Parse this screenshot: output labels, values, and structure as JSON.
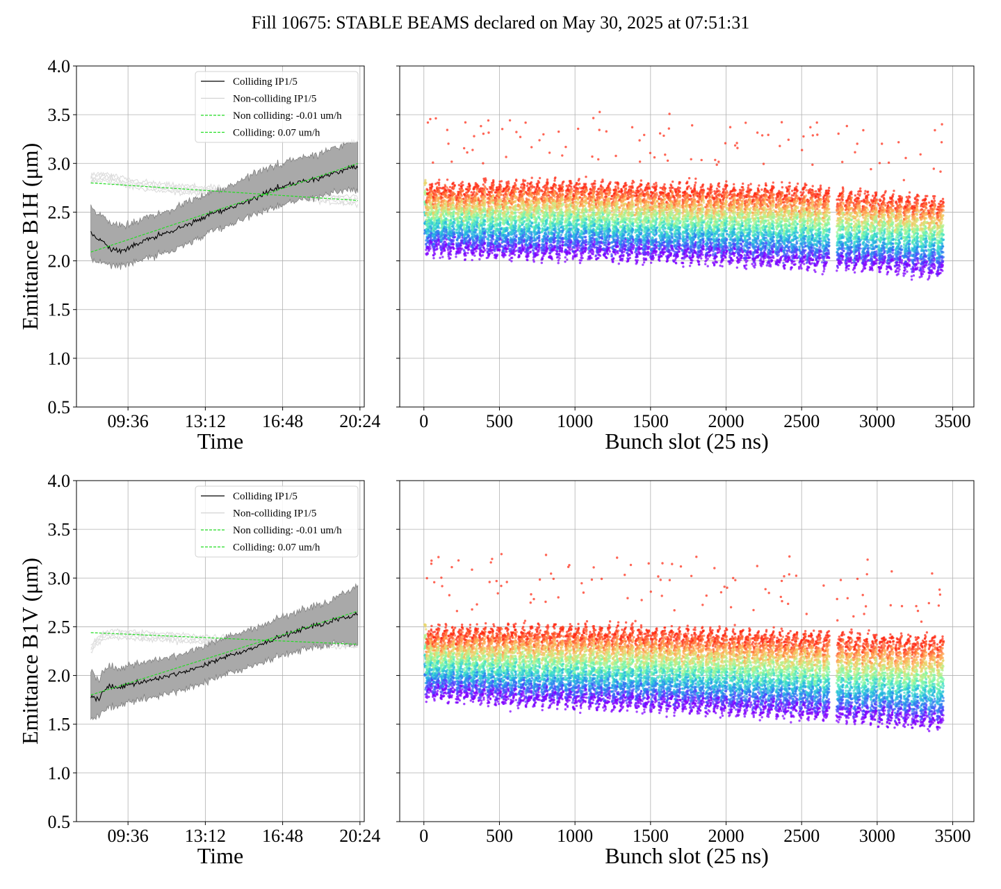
{
  "figure": {
    "title": "Fill 10675: STABLE BEAMS declared on May 30, 2025 at 07:51:31"
  },
  "chart_data": [
    {
      "type": "line",
      "panel": "top-left",
      "ylabel": "Emittance B1H (μm)",
      "xlabel": "Time",
      "ylim": [
        0.5,
        4.0
      ],
      "yticks": [
        "0.5",
        "1.0",
        "1.5",
        "2.0",
        "2.5",
        "3.0",
        "3.5",
        "4.0"
      ],
      "xlim_hours": [
        7.2,
        20.6
      ],
      "xticks": [
        {
          "label": "09:36",
          "hour": 9.6
        },
        {
          "label": "13:12",
          "hour": 13.2
        },
        {
          "label": "16:48",
          "hour": 16.8
        },
        {
          "label": "20:24",
          "hour": 20.4
        }
      ],
      "grid": true,
      "legend_placement": "top-right",
      "series": [
        {
          "name": "Colliding IP1/5",
          "color": "#000000",
          "style": "solid",
          "x_hours": [
            7.87,
            8.3,
            8.8,
            9.3,
            9.8,
            10.5,
            11.5,
            12.5,
            13.5,
            14.5,
            15.5,
            16.5,
            17.5,
            18.5,
            19.5,
            20.3
          ],
          "y": [
            2.28,
            2.22,
            2.12,
            2.1,
            2.15,
            2.22,
            2.3,
            2.38,
            2.48,
            2.55,
            2.64,
            2.75,
            2.8,
            2.85,
            2.92,
            2.97
          ],
          "band_low": [
            2.02,
            1.99,
            1.96,
            1.95,
            1.98,
            2.03,
            2.1,
            2.18,
            2.3,
            2.38,
            2.48,
            2.56,
            2.62,
            2.66,
            2.72,
            2.72
          ],
          "band_high": [
            2.55,
            2.48,
            2.38,
            2.36,
            2.38,
            2.45,
            2.52,
            2.62,
            2.7,
            2.78,
            2.9,
            2.98,
            3.05,
            3.1,
            3.18,
            3.24
          ]
        },
        {
          "name": "Non-colliding IP1/5",
          "color": "#d3d3d3",
          "style": "solid",
          "x_hours": [
            7.87,
            8.5,
            9.5,
            10.5,
            11.5,
            12.5,
            13.5,
            14.5,
            15.5,
            16.5,
            17.5,
            18.5,
            19.5,
            20.3
          ],
          "y": [
            2.84,
            2.86,
            2.8,
            2.77,
            2.74,
            2.73,
            2.72,
            2.7,
            2.69,
            2.68,
            2.67,
            2.65,
            2.63,
            2.62
          ]
        },
        {
          "name": "Non colliding: -0.01 um/h",
          "color": "#22dd22",
          "style": "dashed",
          "x_hours": [
            7.87,
            20.3
          ],
          "y": [
            2.8,
            2.62
          ]
        },
        {
          "name": "Colliding: 0.07 um/h",
          "color": "#22dd22",
          "style": "dashed",
          "x_hours": [
            7.87,
            20.3
          ],
          "y": [
            2.09,
            3.0
          ]
        }
      ]
    },
    {
      "type": "scatter",
      "panel": "top-right",
      "xlabel": "Bunch slot (25 ns)",
      "ylim": [
        0.5,
        4.0
      ],
      "xlim": [
        -160,
        3640
      ],
      "xticks": [
        "0",
        "500",
        "1000",
        "1500",
        "2000",
        "2500",
        "3000",
        "3500"
      ],
      "grid": true,
      "colormap": "rainbow (purple = early, red = late)",
      "trains_start_slot": [
        15,
        60,
        110,
        160,
        215,
        265,
        315,
        365,
        420,
        470,
        520,
        570,
        625,
        675,
        725,
        780,
        830,
        880,
        935,
        985,
        1035,
        1090,
        1140,
        1190,
        1245,
        1295,
        1345,
        1400,
        1450,
        1500,
        1555,
        1605,
        1655,
        1710,
        1760,
        1810,
        1865,
        1915,
        1965,
        2020,
        2070,
        2120,
        2175,
        2225,
        2275,
        2330,
        2380,
        2430,
        2485,
        2535,
        2585,
        2640,
        2735,
        2790,
        2845,
        2900,
        2955,
        3010,
        3065,
        3120,
        3175,
        3230,
        3285,
        3340,
        3395
      ],
      "top_level_by_slot": {
        "x": [
          0,
          500,
          1000,
          1500,
          2000,
          2500,
          3000,
          3450
        ],
        "y": [
          2.72,
          2.74,
          2.75,
          2.72,
          2.7,
          2.7,
          2.62,
          2.58
        ]
      },
      "bottom_level_by_slot": {
        "x": [
          0,
          500,
          1000,
          1500,
          2000,
          2500,
          3000,
          3450
        ],
        "y": [
          2.15,
          2.1,
          2.1,
          2.07,
          2.05,
          2.0,
          1.98,
          1.9
        ]
      },
      "y_max_observed": 3.55,
      "y_min_observed": 1.75
    },
    {
      "type": "line",
      "panel": "bottom-left",
      "ylabel": "Emittance B1V (μm)",
      "xlabel": "Time",
      "ylim": [
        0.5,
        4.0
      ],
      "yticks": [
        "0.5",
        "1.0",
        "1.5",
        "2.0",
        "2.5",
        "3.0",
        "3.5",
        "4.0"
      ],
      "xlim_hours": [
        7.2,
        20.6
      ],
      "xticks": [
        {
          "label": "09:36",
          "hour": 9.6
        },
        {
          "label": "13:12",
          "hour": 13.2
        },
        {
          "label": "16:48",
          "hour": 16.8
        },
        {
          "label": "20:24",
          "hour": 20.4
        }
      ],
      "grid": true,
      "legend_placement": "top-right",
      "series": [
        {
          "name": "Colliding IP1/5",
          "color": "#000000",
          "style": "solid",
          "x_hours": [
            7.87,
            8.2,
            8.6,
            9.3,
            10.0,
            11.0,
            12.0,
            13.0,
            14.0,
            15.0,
            16.0,
            17.0,
            18.0,
            19.0,
            19.8,
            20.3
          ],
          "y": [
            1.78,
            1.75,
            1.88,
            1.88,
            1.92,
            1.97,
            2.03,
            2.1,
            2.18,
            2.25,
            2.34,
            2.42,
            2.5,
            2.55,
            2.6,
            2.63
          ],
          "band_low": [
            1.55,
            1.58,
            1.66,
            1.7,
            1.74,
            1.79,
            1.85,
            1.92,
            2.0,
            2.07,
            2.15,
            2.22,
            2.28,
            2.32,
            2.33,
            2.3
          ],
          "band_high": [
            2.05,
            1.95,
            2.08,
            2.08,
            2.12,
            2.16,
            2.22,
            2.3,
            2.38,
            2.45,
            2.53,
            2.62,
            2.7,
            2.76,
            2.86,
            2.92
          ]
        },
        {
          "name": "Non-colliding IP1/5",
          "color": "#d3d3d3",
          "style": "solid",
          "x_hours": [
            7.87,
            8.2,
            8.6,
            9.5,
            10.5,
            11.5,
            12.5,
            13.5,
            14.5,
            15.5,
            16.5,
            17.5,
            18.5,
            19.5,
            20.3
          ],
          "y": [
            2.28,
            2.36,
            2.42,
            2.42,
            2.4,
            2.39,
            2.38,
            2.36,
            2.37,
            2.36,
            2.36,
            2.35,
            2.34,
            2.33,
            2.32
          ]
        },
        {
          "name": "Non colliding: -0.01 um/h",
          "color": "#22dd22",
          "style": "dashed",
          "x_hours": [
            7.87,
            20.3
          ],
          "y": [
            2.44,
            2.32
          ]
        },
        {
          "name": "Colliding: 0.07 um/h",
          "color": "#22dd22",
          "style": "dashed",
          "x_hours": [
            7.87,
            20.3
          ],
          "y": [
            1.8,
            2.66
          ]
        }
      ]
    },
    {
      "type": "scatter",
      "panel": "bottom-right",
      "xlabel": "Bunch slot (25 ns)",
      "ylim": [
        0.5,
        4.0
      ],
      "xlim": [
        -160,
        3640
      ],
      "xticks": [
        "0",
        "500",
        "1000",
        "1500",
        "2000",
        "2500",
        "3000",
        "3500"
      ],
      "grid": true,
      "colormap": "rainbow (purple = early, red = late)",
      "trains_start_slot": [
        15,
        60,
        110,
        160,
        215,
        265,
        315,
        365,
        420,
        470,
        520,
        570,
        625,
        675,
        725,
        780,
        830,
        880,
        935,
        985,
        1035,
        1090,
        1140,
        1190,
        1245,
        1295,
        1345,
        1400,
        1450,
        1500,
        1555,
        1605,
        1655,
        1710,
        1760,
        1810,
        1865,
        1915,
        1965,
        2020,
        2070,
        2120,
        2175,
        2225,
        2275,
        2330,
        2380,
        2430,
        2485,
        2535,
        2585,
        2640,
        2735,
        2790,
        2845,
        2900,
        2955,
        3010,
        3065,
        3120,
        3175,
        3230,
        3285,
        3340,
        3395
      ],
      "top_level_by_slot": {
        "x": [
          0,
          500,
          1000,
          1500,
          2000,
          2500,
          3000,
          3450
        ],
        "y": [
          2.42,
          2.44,
          2.44,
          2.42,
          2.4,
          2.38,
          2.34,
          2.32
        ]
      },
      "bottom_level_by_slot": {
        "x": [
          0,
          500,
          1000,
          1500,
          2000,
          2500,
          3000,
          3450
        ],
        "y": [
          1.85,
          1.78,
          1.75,
          1.72,
          1.68,
          1.64,
          1.58,
          1.52
        ]
      },
      "y_max_observed": 3.38,
      "y_min_observed": 1.35
    }
  ]
}
